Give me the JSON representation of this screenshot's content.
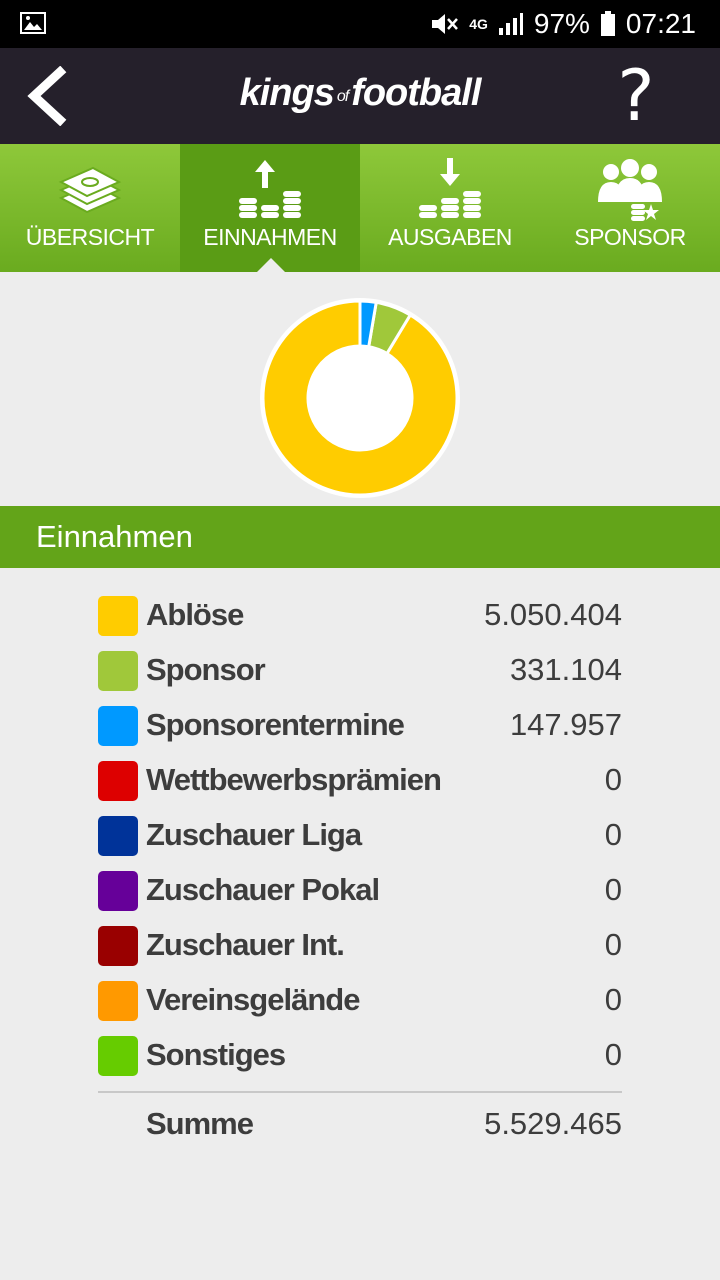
{
  "status_bar": {
    "battery": "97%",
    "time": "07:21",
    "network": "4G"
  },
  "header": {
    "logo_kings": "kings",
    "logo_of": "of",
    "logo_football": "football",
    "help_label": "?"
  },
  "tabs": [
    {
      "label": "ÜBERSICHT",
      "icon": "money-stack-icon",
      "active": false
    },
    {
      "label": "EINNAHMEN",
      "icon": "coins-arrow-up-icon",
      "active": true
    },
    {
      "label": "AUSGABEN",
      "icon": "coins-arrow-down-icon",
      "active": false
    },
    {
      "label": "SPONSOR",
      "icon": "sponsor-group-icon",
      "active": false
    }
  ],
  "section_title": "Einnahmen",
  "income_items": [
    {
      "label": "Ablöse",
      "value": "5.050.404",
      "color": "#ffcc00"
    },
    {
      "label": "Sponsor",
      "value": "331.104",
      "color": "#a0c83a"
    },
    {
      "label": "Sponsorentermine",
      "value": "147.957",
      "color": "#0099ff"
    },
    {
      "label": "Wettbewerbsprämien",
      "value": "0",
      "color": "#dd0000"
    },
    {
      "label": "Zuschauer Liga",
      "value": "0",
      "color": "#003399"
    },
    {
      "label": "Zuschauer Pokal",
      "value": "0",
      "color": "#660099"
    },
    {
      "label": "Zuschauer Int.",
      "value": "0",
      "color": "#990000"
    },
    {
      "label": "Vereinsgelände",
      "value": "0",
      "color": "#ff9900"
    },
    {
      "label": "Sonstiges",
      "value": "0",
      "color": "#66cc00"
    }
  ],
  "sum": {
    "label": "Summe",
    "value": "5.529.465"
  },
  "chart_data": {
    "type": "pie",
    "categories": [
      "Ablöse",
      "Sponsor",
      "Sponsorentermine"
    ],
    "values": [
      5050404,
      331104,
      147957
    ],
    "colors": [
      "#ffcc00",
      "#a0c83a",
      "#0099ff"
    ]
  }
}
